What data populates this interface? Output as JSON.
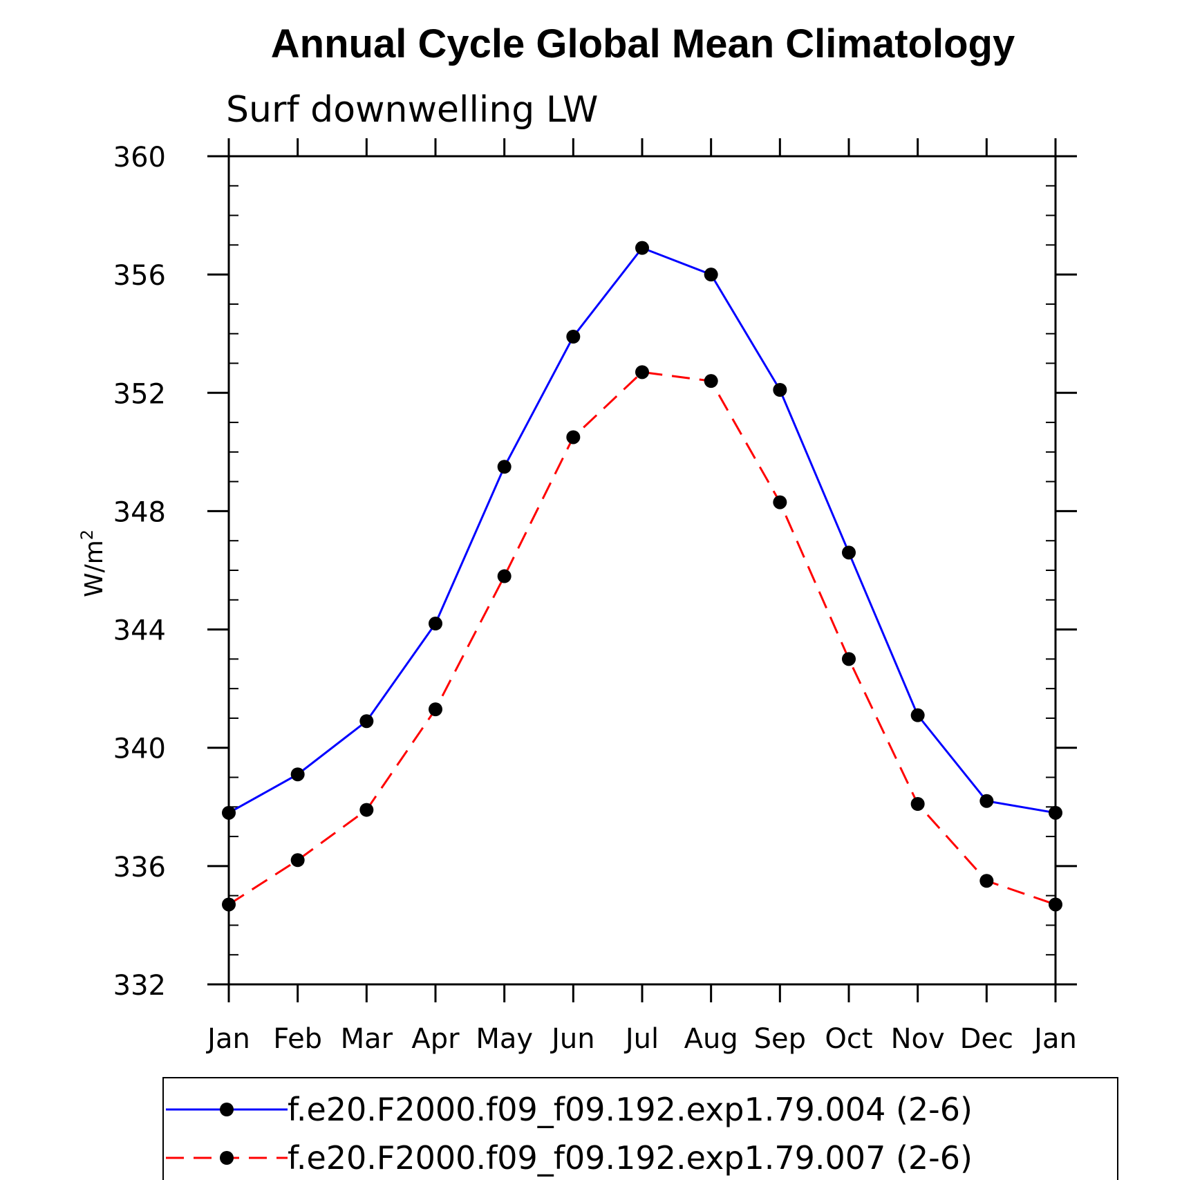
{
  "chart_data": {
    "type": "line",
    "title": "Annual Cycle Global Mean Climatology",
    "subtitle": "Surf downwelling LW",
    "ylabel": "W/m",
    "ylabel_superscript": "2",
    "xlabel": "",
    "categories": [
      "Jan",
      "Feb",
      "Mar",
      "Apr",
      "May",
      "Jun",
      "Jul",
      "Aug",
      "Sep",
      "Oct",
      "Nov",
      "Dec",
      "Jan"
    ],
    "ylim": [
      332,
      360
    ],
    "yticks": [
      "332",
      "336",
      "340",
      "344",
      "348",
      "352",
      "356",
      "360"
    ],
    "grid": false,
    "legend_position": "bottom",
    "series": [
      {
        "name": "f.e20.F2000.f09_f09.192.exp1.79.004 (2-6)",
        "color": "#0000ff",
        "line_style": "solid",
        "values": [
          337.8,
          339.1,
          340.9,
          344.2,
          349.5,
          353.9,
          356.9,
          356.0,
          352.1,
          346.6,
          341.1,
          338.2,
          337.8
        ]
      },
      {
        "name": "f.e20.F2000.f09_f09.192.exp1.79.007 (2-6)",
        "color": "#ff0000",
        "line_style": "dashed",
        "values": [
          334.7,
          336.2,
          337.9,
          341.3,
          345.8,
          350.5,
          352.7,
          352.4,
          348.3,
          343.0,
          338.1,
          335.5,
          334.7
        ]
      }
    ]
  }
}
